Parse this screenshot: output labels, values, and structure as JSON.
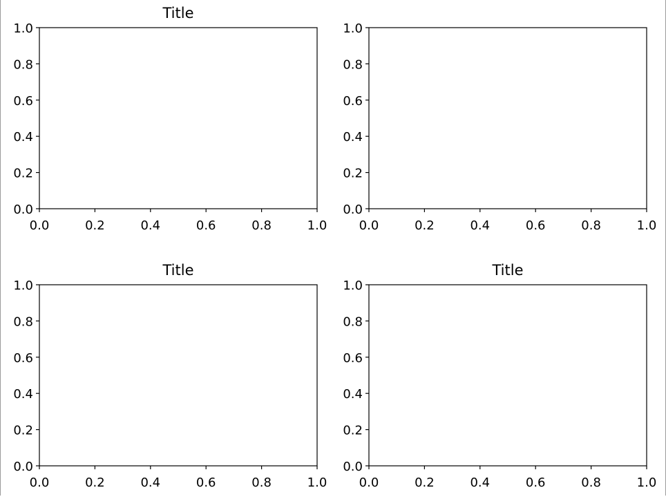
{
  "chart_data": [
    {
      "type": "line",
      "title": "Title",
      "xlabel": "",
      "ylabel": "",
      "xlim": [
        0.0,
        1.0
      ],
      "ylim": [
        0.0,
        1.0
      ],
      "xticks": [
        "0.0",
        "0.2",
        "0.4",
        "0.6",
        "0.8",
        "1.0"
      ],
      "yticks": [
        "0.0",
        "0.2",
        "0.4",
        "0.6",
        "0.8",
        "1.0"
      ],
      "series": [],
      "grid": false
    },
    {
      "type": "line",
      "title": "",
      "xlabel": "",
      "ylabel": "",
      "xlim": [
        0.0,
        1.0
      ],
      "ylim": [
        0.0,
        1.0
      ],
      "xticks": [
        "0.0",
        "0.2",
        "0.4",
        "0.6",
        "0.8",
        "1.0"
      ],
      "yticks": [
        "0.0",
        "0.2",
        "0.4",
        "0.6",
        "0.8",
        "1.0"
      ],
      "series": [],
      "grid": false
    },
    {
      "type": "line",
      "title": "Title",
      "xlabel": "",
      "ylabel": "",
      "xlim": [
        0.0,
        1.0
      ],
      "ylim": [
        0.0,
        1.0
      ],
      "xticks": [
        "0.0",
        "0.2",
        "0.4",
        "0.6",
        "0.8",
        "1.0"
      ],
      "yticks": [
        "0.0",
        "0.2",
        "0.4",
        "0.6",
        "0.8",
        "1.0"
      ],
      "series": [],
      "grid": false
    },
    {
      "type": "line",
      "title": "Title",
      "xlabel": "",
      "ylabel": "",
      "xlim": [
        0.0,
        1.0
      ],
      "ylim": [
        0.0,
        1.0
      ],
      "xticks": [
        "0.0",
        "0.2",
        "0.4",
        "0.6",
        "0.8",
        "1.0"
      ],
      "yticks": [
        "0.0",
        "0.2",
        "0.4",
        "0.6",
        "0.8",
        "1.0"
      ],
      "series": [],
      "grid": false
    }
  ]
}
